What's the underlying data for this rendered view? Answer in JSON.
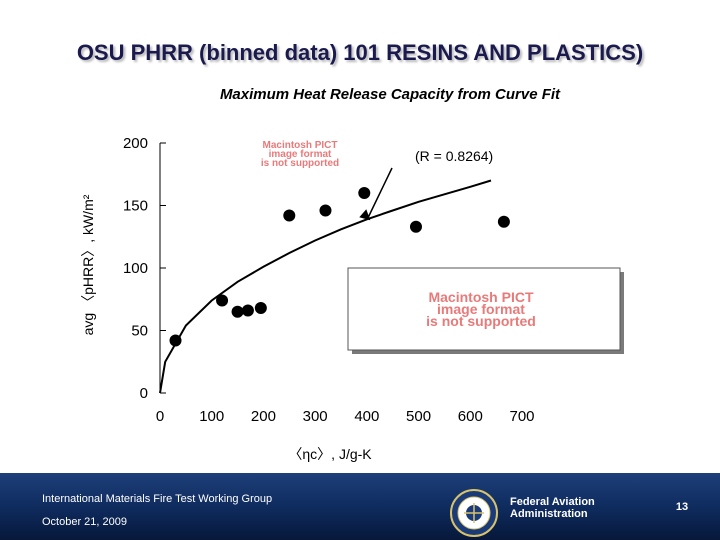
{
  "slide": {
    "title": "OSU PHRR (binned data) 101 RESINS AND PLASTICS)",
    "subtitle": "Maximum Heat Release Capacity from Curve Fit"
  },
  "placeholders": {
    "pict_line1": "Macintosh PICT",
    "pict_line2": "image format",
    "pict_line3": "is not supported"
  },
  "footer": {
    "org": "International Materials Fire Test Working Group",
    "date": "October 21, 2009",
    "agency_line1": "Federal Aviation",
    "agency_line2": "Administration",
    "page_number": "13",
    "seal_icon": "faa-seal-icon",
    "colors": {
      "bar_top": "#1d3f7a",
      "bar_bottom": "#07183a"
    }
  },
  "chart_data": {
    "type": "scatter",
    "title": "",
    "xlabel": "〈ηc〉, J/g-K",
    "ylabel": "avg 〈pHRR〉, kW/m²",
    "xlim": [
      0,
      700
    ],
    "ylim": [
      0,
      200
    ],
    "x_ticks": [
      0,
      100,
      200,
      300,
      400,
      500,
      600,
      700
    ],
    "y_ticks": [
      0,
      50,
      100,
      150,
      200
    ],
    "annotation": "(R = 0.8264)",
    "grid": false,
    "series": [
      {
        "points": [
          {
            "x": 30,
            "y": 42
          },
          {
            "x": 120,
            "y": 74
          },
          {
            "x": 150,
            "y": 65
          },
          {
            "x": 170,
            "y": 66
          },
          {
            "x": 195,
            "y": 68
          },
          {
            "x": 250,
            "y": 142
          },
          {
            "x": 320,
            "y": 146
          },
          {
            "x": 395,
            "y": 160
          },
          {
            "x": 495,
            "y": 133
          },
          {
            "x": 665,
            "y": 137
          }
        ]
      },
      {
        "type": "line",
        "points": [
          {
            "x": 0,
            "y": 0
          },
          {
            "x": 10,
            "y": 25
          },
          {
            "x": 50,
            "y": 54
          },
          {
            "x": 100,
            "y": 74
          },
          {
            "x": 150,
            "y": 89
          },
          {
            "x": 200,
            "y": 101
          },
          {
            "x": 250,
            "y": 112
          },
          {
            "x": 300,
            "y": 122
          },
          {
            "x": 350,
            "y": 131
          },
          {
            "x": 400,
            "y": 139
          },
          {
            "x": 450,
            "y": 146
          },
          {
            "x": 500,
            "y": 153
          },
          {
            "x": 550,
            "y": 159
          },
          {
            "x": 600,
            "y": 165
          },
          {
            "x": 640,
            "y": 170
          }
        ]
      }
    ]
  }
}
